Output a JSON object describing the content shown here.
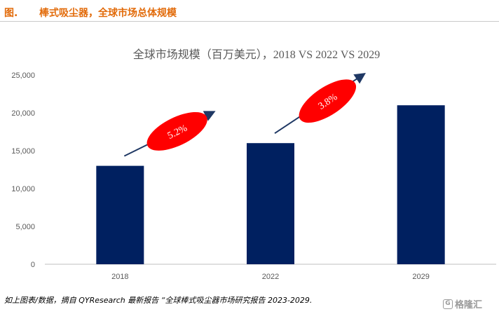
{
  "header": {
    "figure_label": "图.",
    "figure_title": "棒式吸尘器，全球市场总体规模"
  },
  "chart_data": {
    "type": "bar",
    "title": "全球市场规模（百万美元），2018 VS 2022 VS 2029",
    "categories": [
      "2018",
      "2022",
      "2029"
    ],
    "values": [
      13000,
      16000,
      21000
    ],
    "ylim": [
      0,
      25000
    ],
    "yticks": [
      "0",
      "5,000",
      "10,000",
      "15,000",
      "20,000",
      "25,000"
    ],
    "grid": false,
    "bar_color": "#002060",
    "annotations": [
      {
        "label": "5.2%",
        "between": [
          "2018",
          "2022"
        ]
      },
      {
        "label": "3.8%",
        "between": [
          "2022",
          "2029"
        ]
      }
    ],
    "annotation_color": "#ff0000",
    "arrow_color": "#1f3864"
  },
  "footer": {
    "source": "如上图表/数据，摘自 QYResearch 最新报告 “全球棒式吸尘器市场研究报告 2023-2029.",
    "watermark": "格隆汇",
    "watermark_logo": "G"
  }
}
